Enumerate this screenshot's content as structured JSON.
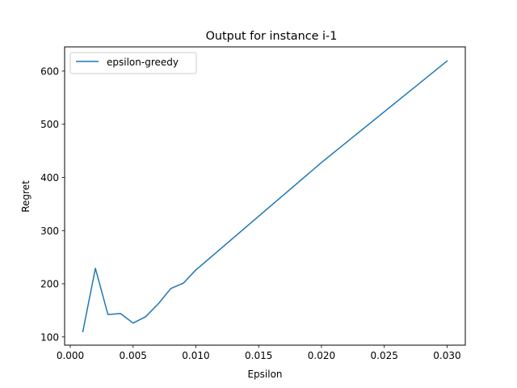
{
  "chart_data": {
    "type": "line",
    "title": "Output for instance i-1",
    "xlabel": "Epsilon",
    "ylabel": "Regret",
    "xlim": [
      -0.00045,
      0.03145
    ],
    "ylim": [
      84.5,
      645.5
    ],
    "xticks": [
      0.0,
      0.005,
      0.01,
      0.015,
      0.02,
      0.025,
      0.03
    ],
    "xtick_labels": [
      "0.000",
      "0.005",
      "0.010",
      "0.015",
      "0.020",
      "0.025",
      "0.030"
    ],
    "yticks": [
      100,
      200,
      300,
      400,
      500,
      600
    ],
    "ytick_labels": [
      "100",
      "200",
      "300",
      "400",
      "500",
      "600"
    ],
    "grid": false,
    "legend_position": "top-left",
    "series": [
      {
        "name": "epsilon-greedy",
        "color": "#1f77b4",
        "x": [
          0.001,
          0.002,
          0.003,
          0.004,
          0.005,
          0.006,
          0.007,
          0.008,
          0.009,
          0.01,
          0.02,
          0.03
        ],
        "y": [
          110,
          229,
          142,
          144,
          126,
          138,
          162,
          191,
          201,
          226,
          428,
          619
        ]
      }
    ]
  }
}
